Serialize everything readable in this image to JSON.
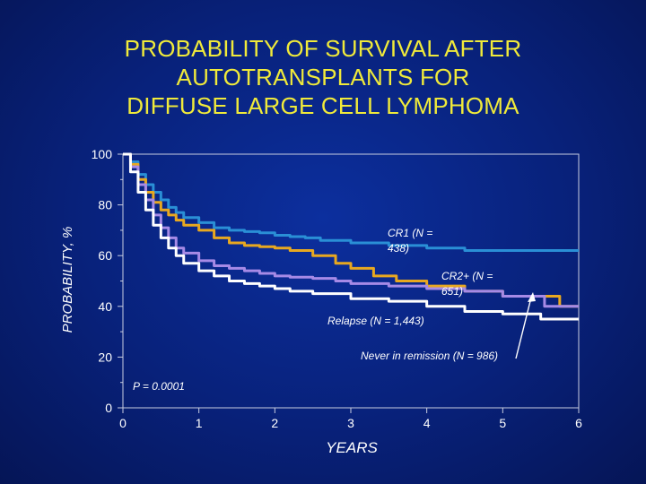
{
  "title_lines": [
    "PROBABILITY OF SURVIVAL AFTER",
    "AUTOTRANSPLANTS FOR",
    "DIFFUSE LARGE CELL LYMPHOMA"
  ],
  "chart_data": {
    "type": "line",
    "title": "PROBABILITY OF SURVIVAL AFTER AUTOTRANSPLANTS FOR DIFFUSE LARGE CELL LYMPHOMA",
    "xlabel": "YEARS",
    "ylabel": "PROBABILITY, %",
    "xlim": [
      0,
      6
    ],
    "ylim": [
      0,
      100
    ],
    "x_ticks": [
      "0",
      "1",
      "2",
      "3",
      "4",
      "5",
      "6"
    ],
    "y_ticks": [
      "0",
      "20",
      "40",
      "60",
      "80",
      "100"
    ],
    "series": [
      {
        "name": "CR1",
        "label": "CR1 (N = 438)",
        "color": "#2a8fd6",
        "points": [
          [
            0,
            100
          ],
          [
            0.1,
            97
          ],
          [
            0.2,
            92
          ],
          [
            0.3,
            88
          ],
          [
            0.4,
            85
          ],
          [
            0.5,
            82
          ],
          [
            0.6,
            79
          ],
          [
            0.7,
            77
          ],
          [
            0.8,
            75
          ],
          [
            1.0,
            73
          ],
          [
            1.2,
            71
          ],
          [
            1.4,
            70
          ],
          [
            1.6,
            69.5
          ],
          [
            1.8,
            69
          ],
          [
            2.0,
            68
          ],
          [
            2.2,
            67.5
          ],
          [
            2.4,
            67
          ],
          [
            2.6,
            66
          ],
          [
            3.0,
            65
          ],
          [
            3.5,
            64
          ],
          [
            4.0,
            63
          ],
          [
            4.5,
            62
          ],
          [
            6.0,
            62
          ]
        ]
      },
      {
        "name": "CR2+",
        "label": "CR2+ (N = 651)",
        "color": "#e8a820",
        "points": [
          [
            0,
            100
          ],
          [
            0.1,
            96
          ],
          [
            0.2,
            90
          ],
          [
            0.3,
            85
          ],
          [
            0.4,
            81
          ],
          [
            0.5,
            78
          ],
          [
            0.6,
            76
          ],
          [
            0.7,
            74
          ],
          [
            0.8,
            72
          ],
          [
            1.0,
            70
          ],
          [
            1.2,
            67
          ],
          [
            1.4,
            65
          ],
          [
            1.6,
            64
          ],
          [
            1.8,
            63.5
          ],
          [
            2.0,
            63
          ],
          [
            2.2,
            62
          ],
          [
            2.5,
            60
          ],
          [
            2.8,
            57
          ],
          [
            3.0,
            55
          ],
          [
            3.3,
            52
          ],
          [
            3.6,
            50
          ],
          [
            4.0,
            48
          ],
          [
            4.5,
            46
          ],
          [
            5.0,
            44
          ],
          [
            5.7,
            44
          ],
          [
            5.75,
            40
          ],
          [
            6.0,
            40
          ]
        ]
      },
      {
        "name": "Relapse",
        "label": "Relapse (N = 1,443)",
        "color": "#a68ae6",
        "points": [
          [
            0,
            100
          ],
          [
            0.1,
            95
          ],
          [
            0.2,
            88
          ],
          [
            0.3,
            82
          ],
          [
            0.4,
            76
          ],
          [
            0.5,
            71
          ],
          [
            0.6,
            67
          ],
          [
            0.7,
            63
          ],
          [
            0.8,
            61
          ],
          [
            1.0,
            58
          ],
          [
            1.2,
            56
          ],
          [
            1.4,
            55
          ],
          [
            1.6,
            54
          ],
          [
            1.8,
            53
          ],
          [
            2.0,
            52
          ],
          [
            2.2,
            51.5
          ],
          [
            2.5,
            51
          ],
          [
            2.8,
            50
          ],
          [
            3.0,
            49
          ],
          [
            3.5,
            48
          ],
          [
            4.0,
            47
          ],
          [
            4.5,
            46
          ],
          [
            5.0,
            44
          ],
          [
            5.5,
            44
          ],
          [
            5.55,
            40
          ],
          [
            6.0,
            40
          ]
        ]
      },
      {
        "name": "Never in remission",
        "label": "Never in remission (N = 986)",
        "color": "#ffffff",
        "points": [
          [
            0,
            100
          ],
          [
            0.1,
            93
          ],
          [
            0.2,
            85
          ],
          [
            0.3,
            78
          ],
          [
            0.4,
            72
          ],
          [
            0.5,
            67
          ],
          [
            0.6,
            63
          ],
          [
            0.7,
            60
          ],
          [
            0.8,
            57
          ],
          [
            1.0,
            54
          ],
          [
            1.2,
            52
          ],
          [
            1.4,
            50
          ],
          [
            1.6,
            49
          ],
          [
            1.8,
            48
          ],
          [
            2.0,
            47
          ],
          [
            2.2,
            46
          ],
          [
            2.5,
            45
          ],
          [
            3.0,
            43
          ],
          [
            3.5,
            42
          ],
          [
            4.0,
            40
          ],
          [
            4.5,
            38
          ],
          [
            5.0,
            37
          ],
          [
            5.5,
            35
          ],
          [
            6.0,
            35
          ]
        ]
      }
    ],
    "annotations": [
      "P = 0.0001"
    ]
  }
}
